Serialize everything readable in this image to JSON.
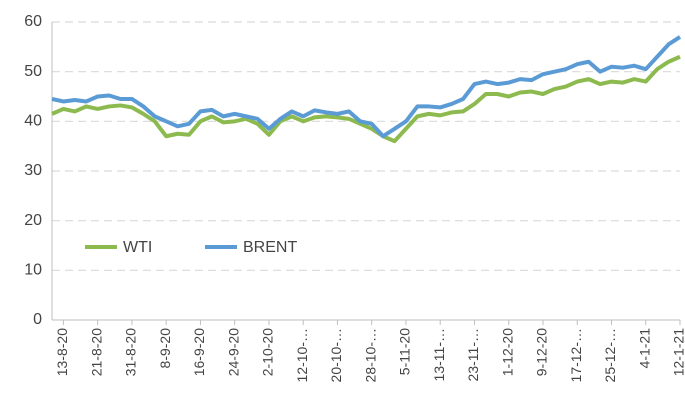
{
  "chart_data": {
    "type": "line",
    "categories": [
      null,
      "13-8-20",
      null,
      null,
      "21-8-20",
      null,
      null,
      "31-8-20",
      null,
      null,
      "8-9-20",
      null,
      null,
      "16-9-20",
      null,
      null,
      "24-9-20",
      null,
      null,
      "2-10-20",
      null,
      null,
      "12-10-…",
      null,
      null,
      "20-10-…",
      null,
      null,
      "28-10-…",
      null,
      null,
      "5-11-20",
      null,
      null,
      "13-11-…",
      null,
      null,
      "23-11-…",
      null,
      null,
      "1-12-20",
      null,
      null,
      "9-12-20",
      null,
      null,
      "17-12-…",
      null,
      null,
      "25-12-…",
      null,
      null,
      "4-1-21",
      null,
      null,
      "12-1-21"
    ],
    "series": [
      {
        "name": "WTI",
        "color": "#8cba4e",
        "values": [
          41.5,
          42.5,
          42,
          43,
          42.5,
          43,
          43.2,
          42.8,
          41.5,
          40,
          37,
          37.5,
          37.3,
          40,
          41,
          39.8,
          40,
          40.5,
          39.5,
          37.3,
          40,
          41,
          40,
          40.8,
          41,
          40.8,
          40.5,
          39.5,
          38.5,
          37,
          36,
          38.5,
          41,
          41.5,
          41.2,
          41.8,
          42,
          43.5,
          45.5,
          45.5,
          45,
          45.8,
          46,
          45.5,
          46.5,
          47,
          48,
          48.5,
          47.5,
          48,
          47.8,
          48.5,
          48,
          50.5,
          52,
          53
        ]
      },
      {
        "name": "BRENT",
        "color": "#5b9bd5",
        "values": [
          44.5,
          44,
          44.3,
          44,
          45,
          45.2,
          44.5,
          44.5,
          43,
          41,
          40,
          39,
          39.5,
          42,
          42.3,
          41,
          41.5,
          41,
          40.5,
          38.5,
          40.5,
          42,
          41,
          42.2,
          41.8,
          41.5,
          42,
          40,
          39.5,
          37,
          38.5,
          40,
          43,
          43,
          42.8,
          43.5,
          44.5,
          47.5,
          48,
          47.5,
          47.8,
          48.5,
          48.3,
          49.5,
          50,
          50.5,
          51.5,
          52,
          50,
          51,
          50.8,
          51.2,
          50.5,
          53,
          55.5,
          57
        ]
      }
    ],
    "ylim": [
      0,
      60
    ],
    "yticks": [
      0,
      10,
      20,
      30,
      40,
      50,
      60
    ],
    "grid": true
  }
}
